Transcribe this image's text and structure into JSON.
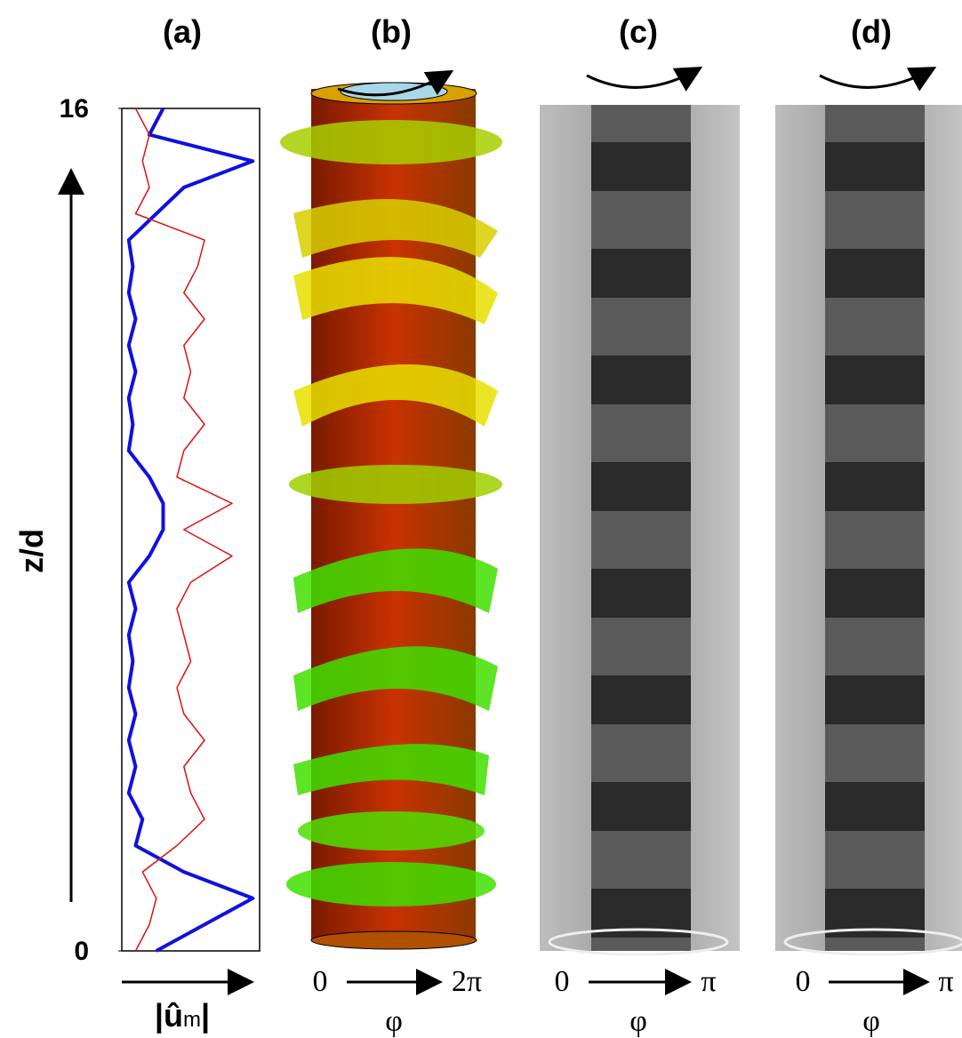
{
  "chart_data": {
    "type": "line",
    "ylabel": "z/d",
    "xlabel": [
      "|û",
      "m",
      "|"
    ],
    "ylim": [
      0,
      16
    ],
    "yticks": [
      0,
      16
    ],
    "x": [
      0,
      0.5,
      1,
      1.5,
      2,
      2.5,
      3,
      3.5,
      4,
      4.5,
      5,
      5.5,
      6,
      6.5,
      7,
      7.5,
      8,
      8.5,
      9,
      9.5,
      10,
      10.5,
      11,
      11.5,
      12,
      12.5,
      13,
      13.5,
      14,
      14.5,
      15,
      15.5,
      16
    ],
    "series": [
      {
        "color": "#1010e0",
        "values": [
          0.25,
          0.6,
          0.95,
          0.45,
          0.1,
          0.15,
          0.05,
          0.1,
          0.05,
          0.1,
          0.05,
          0.08,
          0.05,
          0.1,
          0.05,
          0.2,
          0.3,
          0.3,
          0.2,
          0.05,
          0.08,
          0.05,
          0.1,
          0.05,
          0.1,
          0.05,
          0.08,
          0.05,
          0.25,
          0.45,
          0.95,
          0.2,
          0.3
        ]
      },
      {
        "color": "#e01010",
        "values": [
          0.1,
          0.2,
          0.25,
          0.15,
          0.4,
          0.6,
          0.5,
          0.45,
          0.6,
          0.45,
          0.4,
          0.5,
          0.45,
          0.4,
          0.5,
          0.8,
          0.45,
          0.8,
          0.4,
          0.45,
          0.6,
          0.45,
          0.5,
          0.45,
          0.6,
          0.45,
          0.55,
          0.6,
          0.1,
          0.2,
          0.15,
          0.2,
          0.1
        ]
      }
    ]
  },
  "panels": [
    {
      "label": "(a)"
    },
    {
      "label": "(b)",
      "from": "0",
      "to": "2π",
      "axis": "φ"
    },
    {
      "label": "(c)",
      "from": "0",
      "to": "π",
      "axis": "φ"
    },
    {
      "label": "(d)",
      "from": "0",
      "to": "π",
      "axis": "φ"
    }
  ]
}
